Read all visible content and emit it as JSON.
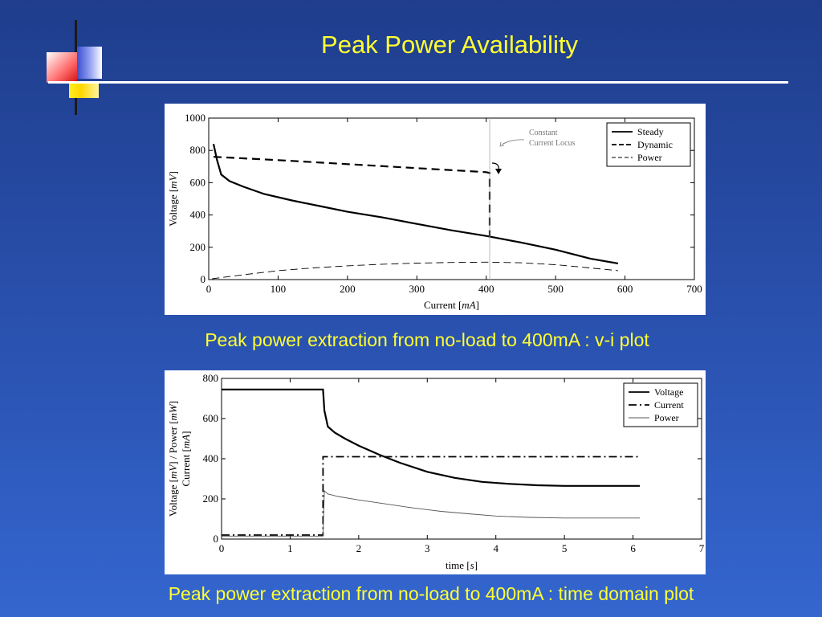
{
  "slide": {
    "title": "Peak Power Availability",
    "caption1": "Peak power extraction from no-load to 400mA : v-i plot",
    "caption2": "Peak power extraction from no-load to 400mA : time domain plot",
    "colors": {
      "background": "#2a52b0",
      "title_text": "#ffff33",
      "caption_text": "#ffff33"
    }
  },
  "chart_data": [
    {
      "type": "line",
      "xlabel_main": "Current",
      "xlabel_unit": "mA",
      "ylabel_main": "Voltage",
      "ylabel_unit": "mV",
      "xlim": [
        0,
        700
      ],
      "ylim": [
        0,
        1000
      ],
      "xticks": [
        0,
        100,
        200,
        300,
        400,
        500,
        600,
        700
      ],
      "yticks": [
        0,
        200,
        400,
        600,
        800,
        1000
      ],
      "grid": false,
      "legend_position": "top-right",
      "annotation": {
        "line1": "Constant",
        "line2": "Current Locus",
        "x": 405
      },
      "series": [
        {
          "name": "Steady",
          "style": "solid",
          "x": [
            7,
            12,
            18,
            30,
            50,
            80,
            120,
            160,
            200,
            250,
            300,
            350,
            400,
            450,
            500,
            550,
            590
          ],
          "y": [
            840,
            740,
            650,
            610,
            575,
            530,
            490,
            455,
            420,
            385,
            345,
            305,
            270,
            230,
            185,
            130,
            100
          ]
        },
        {
          "name": "Dynamic",
          "style": "dashed",
          "x": [
            7,
            100,
            200,
            300,
            400,
            405,
            405,
            405
          ],
          "y": [
            760,
            740,
            715,
            690,
            665,
            660,
            450,
            270
          ]
        },
        {
          "name": "Power",
          "style": "dashed-thin",
          "x": [
            5,
            50,
            100,
            150,
            200,
            250,
            300,
            350,
            400,
            450,
            500,
            550,
            590
          ],
          "y": [
            5,
            30,
            55,
            72,
            85,
            95,
            102,
            106,
            108,
            104,
            92,
            72,
            55
          ]
        }
      ]
    },
    {
      "type": "line",
      "xlabel_main": "time",
      "xlabel_unit": "s",
      "ylabel_line1_main": "Voltage",
      "ylabel_line1_unit": "mV",
      "ylabel_sep": "/",
      "ylabel_power_main": "Power",
      "ylabel_power_unit": "mW",
      "ylabel_line2_main": "Current",
      "ylabel_line2_unit": "mA",
      "xlim": [
        0,
        7
      ],
      "ylim": [
        0,
        800
      ],
      "xticks": [
        0,
        1,
        2,
        3,
        4,
        5,
        6,
        7
      ],
      "yticks": [
        0,
        200,
        400,
        600,
        800
      ],
      "grid": false,
      "legend_position": "top-right",
      "series": [
        {
          "name": "Voltage",
          "style": "solid",
          "x": [
            0,
            1.48,
            1.5,
            1.55,
            1.65,
            1.8,
            2.0,
            2.3,
            2.6,
            3.0,
            3.4,
            3.8,
            4.2,
            4.6,
            5.0,
            5.5,
            6.1
          ],
          "y": [
            745,
            745,
            640,
            560,
            530,
            500,
            465,
            420,
            380,
            335,
            305,
            285,
            275,
            268,
            265,
            265,
            265
          ]
        },
        {
          "name": "Current",
          "style": "dashdot",
          "x": [
            0,
            1.48,
            1.48,
            6.1
          ],
          "y": [
            20,
            20,
            410,
            410
          ]
        },
        {
          "name": "Power",
          "style": "solid-thin",
          "x": [
            0,
            1.48,
            1.5,
            1.55,
            1.7,
            2.0,
            2.4,
            2.8,
            3.2,
            3.6,
            4.0,
            4.5,
            5.0,
            5.5,
            6.1
          ],
          "y": [
            15,
            15,
            240,
            225,
            212,
            195,
            175,
            155,
            138,
            126,
            115,
            108,
            105,
            105,
            105
          ]
        }
      ]
    }
  ]
}
